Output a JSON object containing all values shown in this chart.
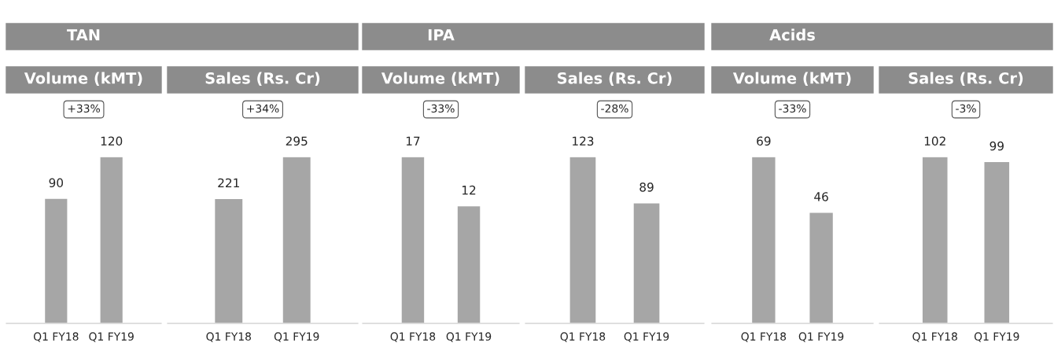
{
  "chart_data": [
    {
      "type": "bar",
      "title": "TAN",
      "subtitle": "Volume (kMT)",
      "annotations": [
        "+33%"
      ],
      "categories": [
        "Q1 FY18",
        "Q1 FY19"
      ],
      "values": [
        90,
        120
      ],
      "color": "#a6a6a6",
      "data_labels": true
    },
    {
      "type": "bar",
      "subtitle": "Sales (Rs. Cr)",
      "annotations": [
        "+34%"
      ],
      "categories": [
        "Q1 FY18",
        "Q1 FY19"
      ],
      "values": [
        221,
        295
      ],
      "color": "#a6a6a6",
      "data_labels": true
    },
    {
      "type": "bar",
      "title": "IPA",
      "subtitle": "Volume (kMT)",
      "annotations": [
        "-33%"
      ],
      "categories": [
        "Q1 FY18",
        "Q1 FY19"
      ],
      "values": [
        17,
        12
      ],
      "color": "#a6a6a6",
      "data_labels": true
    },
    {
      "type": "bar",
      "subtitle": "Sales (Rs. Cr)",
      "annotations": [
        "-28%"
      ],
      "categories": [
        "Q1 FY18",
        "Q1 FY19"
      ],
      "values": [
        123,
        89
      ],
      "color": "#a6a6a6",
      "data_labels": true
    },
    {
      "type": "bar",
      "title": "Acids",
      "subtitle": "Volume (kMT)",
      "annotations": [
        "-33%"
      ],
      "categories": [
        "Q1 FY18",
        "Q1 FY19"
      ],
      "values": [
        69,
        46
      ],
      "color": "#a6a6a6",
      "data_labels": true
    },
    {
      "type": "bar",
      "subtitle": "Sales (Rs. Cr)",
      "annotations": [
        "-3%"
      ],
      "categories": [
        "Q1 FY18",
        "Q1 FY19"
      ],
      "values": [
        102,
        99
      ],
      "color": "#a6a6a6",
      "data_labels": true
    }
  ]
}
